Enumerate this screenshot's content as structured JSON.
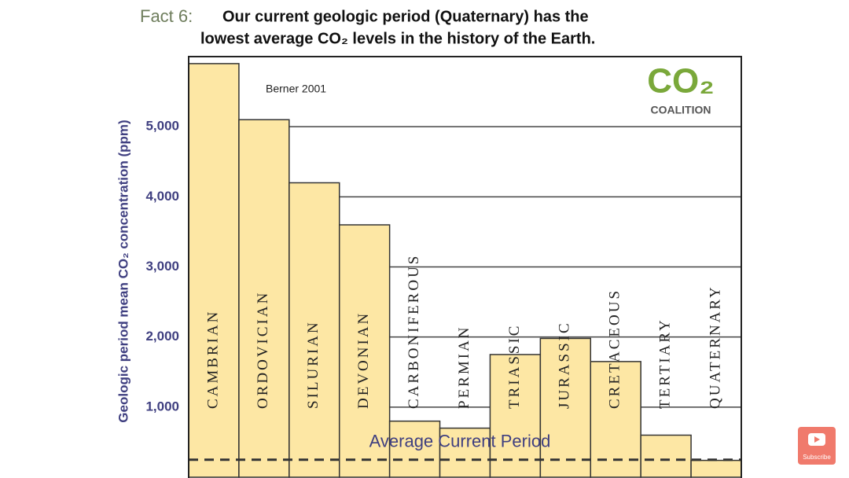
{
  "fact_label": "Fact 6:",
  "chart_data": {
    "type": "bar",
    "title_lines": [
      "Our current geologic period (Quaternary) has the",
      "lowest average CO₂ levels in the history of the Earth."
    ],
    "y_label": "Geologic period mean CO₂ concentration (ppm)",
    "source": "Berner 2001",
    "categories": [
      "CAMBRIAN",
      "ORDOVICIAN",
      "SILURIAN",
      "DEVONIAN",
      "CARBONIFEROUS",
      "PERMIAN",
      "TRIASSIC",
      "JURASSIC",
      "CRETACEOUS",
      "TERTIARY",
      "QUATERNARY"
    ],
    "values": [
      5900,
      5100,
      4200,
      3600,
      800,
      700,
      1750,
      1980,
      1650,
      600,
      240
    ],
    "color": "#fde7a4",
    "ylim": [
      0,
      6000
    ],
    "yticks": [
      {
        "value": 1000,
        "label": "1,000"
      },
      {
        "value": 2000,
        "label": "2,000"
      },
      {
        "value": 3000,
        "label": "3,000"
      },
      {
        "value": 4000,
        "label": "4,000"
      },
      {
        "value": 5000,
        "label": "5,000"
      }
    ],
    "grid": true,
    "reference_line": {
      "value": 250,
      "label": "Average Current Period"
    }
  },
  "logo": {
    "mark": "CO₂",
    "name": "COALITION"
  },
  "subscribe": "Subscribe"
}
